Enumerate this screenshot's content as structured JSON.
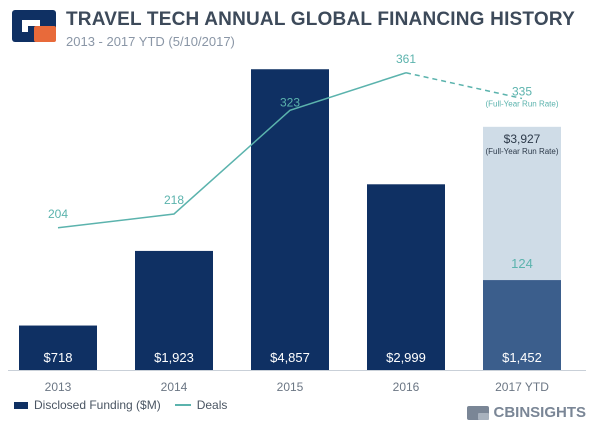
{
  "header": {
    "title": "TRAVEL TECH ANNUAL GLOBAL FINANCING HISTORY",
    "subtitle": "2013 - 2017 YTD (5/10/2017)"
  },
  "legend": {
    "funding_label": "Disclosed Funding ($M)",
    "deals_label": "Deals"
  },
  "brand": {
    "name": "CBINSIGHTS",
    "logo_colors": [
      "#0f3063",
      "#e86a3a"
    ]
  },
  "colors": {
    "bar": "#0f3063",
    "bar_ytd": "#3b5e8c",
    "bar_runrate": "#cfdce7",
    "line": "#5bb3ad",
    "axis_text": "#6b7684"
  },
  "chart_data": {
    "type": "bar",
    "categories": [
      "2013",
      "2014",
      "2015",
      "2016",
      "2017 YTD"
    ],
    "ylim": [
      0,
      5200
    ],
    "series": [
      {
        "name": "Disclosed Funding ($M)",
        "values": [
          718,
          1923,
          4857,
          2999,
          1452
        ],
        "labels": [
          "$718",
          "$1,923",
          "$4,857",
          "$2,999",
          "$1,452"
        ]
      },
      {
        "name": "Deals",
        "type": "line",
        "values": [
          204,
          218,
          323,
          361,
          124
        ],
        "labels": [
          "204",
          "218",
          "323",
          "361",
          "124"
        ],
        "ylim": [
          60,
          380
        ]
      }
    ],
    "run_rate": {
      "funding_value": 3927,
      "funding_label": "$3,927",
      "deals_value": 335,
      "deals_label": "335",
      "note": "(Full-Year Run Rate)"
    }
  }
}
